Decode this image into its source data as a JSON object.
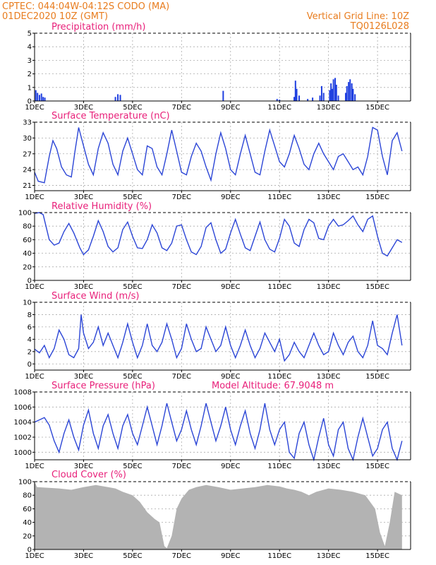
{
  "header": {
    "left_line1": "CPTEC:   044:04W-04:12S   CODO (MA)",
    "left_line2": "01DEC2020  10Z (GMT)",
    "right_line1": "Vertical Grid Line: 10Z",
    "right_line2": "TQ0126L028"
  },
  "colors": {
    "header": "#e87c1e",
    "panel_title": "#e8207a",
    "line": "#2b45d6",
    "bars": "#1f3fe0",
    "cloud": "#b3b3b3",
    "grid": "#aaaaaa"
  },
  "x_ticks": [
    "1DEC",
    "3DEC",
    "5DEC",
    "7DEC",
    "9DEC",
    "11DEC",
    "13DEC",
    "15DEC"
  ],
  "chart_data": [
    {
      "type": "bar",
      "title": "Precipitation (mm/h)",
      "ylim": [
        0,
        5
      ],
      "yticks": [
        "0",
        "1",
        "2",
        "3",
        "4",
        "5"
      ],
      "x_unit": "days since 1DEC 10Z",
      "points": [
        [
          0.05,
          0.8
        ],
        [
          0.12,
          0.6
        ],
        [
          0.2,
          0.45
        ],
        [
          0.28,
          0.55
        ],
        [
          0.35,
          0.3
        ],
        [
          0.42,
          0.25
        ],
        [
          3.3,
          0.3
        ],
        [
          3.4,
          0.5
        ],
        [
          3.5,
          0.45
        ],
        [
          7.7,
          0.75
        ],
        [
          9.9,
          0.15
        ],
        [
          10.0,
          0.1
        ],
        [
          10.6,
          0.3
        ],
        [
          10.65,
          1.5
        ],
        [
          10.7,
          0.9
        ],
        [
          10.8,
          0.4
        ],
        [
          11.15,
          0.15
        ],
        [
          11.35,
          0.25
        ],
        [
          11.65,
          0.4
        ],
        [
          11.72,
          1.1
        ],
        [
          11.8,
          0.6
        ],
        [
          12.05,
          0.8
        ],
        [
          12.1,
          1.3
        ],
        [
          12.15,
          0.9
        ],
        [
          12.2,
          1.6
        ],
        [
          12.27,
          1.7
        ],
        [
          12.32,
          1.2
        ],
        [
          12.4,
          0.4
        ],
        [
          12.7,
          0.6
        ],
        [
          12.75,
          1.1
        ],
        [
          12.82,
          1.4
        ],
        [
          12.88,
          1.6
        ],
        [
          12.95,
          1.3
        ],
        [
          13.0,
          0.9
        ],
        [
          13.08,
          0.5
        ]
      ]
    },
    {
      "type": "line",
      "title": "Surface Temperature (nC)",
      "ylim": [
        20,
        33
      ],
      "yticks": [
        "21",
        "24",
        "27",
        "30",
        "33"
      ],
      "x_unit": "days since 1DEC 10Z",
      "x": [
        0,
        0.15,
        0.4,
        0.6,
        0.75,
        0.9,
        1.1,
        1.3,
        1.5,
        1.65,
        1.8,
        2.0,
        2.2,
        2.4,
        2.6,
        2.8,
        3.0,
        3.2,
        3.4,
        3.6,
        3.8,
        4.0,
        4.2,
        4.4,
        4.6,
        4.8,
        5.0,
        5.2,
        5.4,
        5.6,
        5.8,
        6.0,
        6.2,
        6.4,
        6.6,
        6.8,
        7.0,
        7.2,
        7.4,
        7.6,
        7.8,
        8.0,
        8.2,
        8.4,
        8.6,
        8.8,
        9.0,
        9.2,
        9.4,
        9.6,
        9.8,
        10.0,
        10.2,
        10.4,
        10.6,
        10.8,
        11.0,
        11.2,
        11.4,
        11.6,
        11.8,
        12.0,
        12.2,
        12.4,
        12.6,
        12.8,
        13.0,
        13.2,
        13.4,
        13.6,
        13.8,
        14.0,
        14.2,
        14.4,
        14.6,
        14.8,
        15.0
      ],
      "y": [
        23.5,
        21.8,
        21.5,
        26.5,
        29.5,
        28.0,
        24.5,
        23.0,
        22.6,
        27.5,
        32.0,
        28.5,
        25.0,
        23.0,
        28.0,
        31.0,
        29.0,
        25.0,
        23.0,
        27.5,
        30.0,
        27.0,
        24.0,
        23.0,
        28.5,
        28.0,
        24.5,
        23.0,
        27.0,
        31.5,
        27.5,
        23.5,
        23.0,
        26.5,
        29.0,
        27.5,
        24.5,
        22.0,
        27.0,
        31.0,
        28.0,
        24.0,
        23.0,
        27.0,
        30.5,
        27.0,
        23.5,
        23.0,
        27.5,
        31.5,
        28.5,
        25.5,
        24.5,
        27.0,
        30.5,
        28.0,
        25.0,
        24.0,
        27.0,
        29.0,
        27.0,
        25.5,
        24.0,
        26.5,
        27.0,
        25.5,
        24.0,
        24.5,
        23.0,
        26.5,
        32.0,
        31.5,
        26.5,
        23.0,
        29.5,
        31.0,
        27.5
      ]
    },
    {
      "type": "line",
      "title": "Relative Humidity (%)",
      "ylim": [
        0,
        100
      ],
      "yticks": [
        "0",
        "20",
        "40",
        "60",
        "80",
        "100"
      ],
      "x_unit": "days since 1DEC 10Z",
      "x": [
        0,
        0.2,
        0.35,
        0.6,
        0.8,
        1.0,
        1.2,
        1.4,
        1.6,
        1.85,
        2.0,
        2.2,
        2.4,
        2.6,
        2.8,
        3.0,
        3.2,
        3.4,
        3.6,
        3.8,
        4.0,
        4.2,
        4.4,
        4.6,
        4.8,
        5.0,
        5.2,
        5.4,
        5.6,
        5.8,
        6.0,
        6.2,
        6.4,
        6.6,
        6.8,
        7.0,
        7.2,
        7.4,
        7.6,
        7.8,
        8.0,
        8.2,
        8.4,
        8.6,
        8.8,
        9.0,
        9.2,
        9.4,
        9.6,
        9.8,
        10.0,
        10.2,
        10.4,
        10.6,
        10.8,
        11.0,
        11.2,
        11.4,
        11.6,
        11.8,
        12.0,
        12.2,
        12.4,
        12.6,
        12.8,
        13.0,
        13.2,
        13.4,
        13.6,
        13.8,
        14.0,
        14.2,
        14.4,
        14.6,
        14.8,
        15.0
      ],
      "y": [
        99,
        100,
        97,
        60,
        52,
        55,
        72,
        84,
        70,
        48,
        38,
        45,
        65,
        88,
        72,
        50,
        42,
        48,
        75,
        86,
        65,
        48,
        47,
        60,
        82,
        70,
        48,
        44,
        55,
        80,
        82,
        60,
        42,
        38,
        50,
        78,
        85,
        60,
        40,
        46,
        70,
        90,
        68,
        48,
        44,
        65,
        86,
        60,
        46,
        42,
        62,
        90,
        80,
        55,
        50,
        75,
        90,
        85,
        62,
        60,
        80,
        90,
        80,
        82,
        88,
        95,
        82,
        72,
        90,
        95,
        65,
        40,
        36,
        48,
        60,
        56
      ]
    },
    {
      "type": "line",
      "title": "Surface Wind (m/s)",
      "ylim": [
        -1,
        10
      ],
      "yticks": [
        "0",
        "2",
        "4",
        "6",
        "8",
        "10"
      ],
      "x_unit": "days since 1DEC 10Z",
      "x": [
        0,
        0.2,
        0.4,
        0.6,
        0.8,
        1.0,
        1.2,
        1.4,
        1.6,
        1.8,
        1.9,
        2.0,
        2.2,
        2.4,
        2.6,
        2.8,
        3.0,
        3.2,
        3.4,
        3.6,
        3.8,
        4.0,
        4.2,
        4.4,
        4.6,
        4.8,
        5.0,
        5.2,
        5.4,
        5.6,
        5.8,
        6.0,
        6.2,
        6.4,
        6.6,
        6.8,
        7.0,
        7.2,
        7.4,
        7.6,
        7.8,
        8.0,
        8.2,
        8.4,
        8.6,
        8.8,
        9.0,
        9.2,
        9.4,
        9.6,
        9.8,
        10.0,
        10.2,
        10.4,
        10.6,
        10.8,
        11.0,
        11.2,
        11.4,
        11.6,
        11.8,
        12.0,
        12.2,
        12.4,
        12.6,
        12.8,
        13.0,
        13.2,
        13.4,
        13.6,
        13.8,
        14.0,
        14.2,
        14.4,
        14.6,
        14.8,
        15.0
      ],
      "y": [
        2.4,
        1.8,
        3.0,
        1.0,
        2.5,
        5.5,
        4.0,
        1.5,
        1.0,
        2.5,
        8.0,
        5.0,
        2.5,
        3.5,
        6.0,
        3.0,
        5.0,
        3.0,
        1.0,
        3.5,
        6.5,
        3.5,
        1.0,
        3.0,
        6.5,
        3.0,
        2.0,
        3.5,
        6.5,
        4.0,
        1.0,
        2.5,
        6.5,
        4.0,
        2.0,
        2.5,
        6.0,
        4.0,
        2.0,
        3.0,
        6.0,
        3.0,
        1.0,
        3.0,
        5.5,
        3.0,
        1.0,
        2.5,
        5.0,
        3.5,
        2.0,
        4.0,
        0.5,
        1.5,
        3.5,
        2.0,
        1.0,
        3.0,
        5.0,
        3.0,
        1.5,
        2.0,
        5.0,
        3.0,
        1.5,
        3.5,
        4.5,
        2.0,
        1.0,
        3.0,
        7.0,
        3.0,
        2.5,
        1.5,
        5.0,
        8.0,
        3.0
      ]
    },
    {
      "type": "line",
      "title": "Surface Pressure (hPa)",
      "subtitle": "Model Altitude: 67.9048  m",
      "ylim": [
        999,
        1008
      ],
      "yticks": [
        "1000",
        "1002",
        "1004",
        "1006",
        "1008"
      ],
      "x_unit": "days since 1DEC 10Z",
      "x": [
        0,
        0.2,
        0.4,
        0.6,
        0.8,
        1.0,
        1.2,
        1.4,
        1.6,
        1.8,
        2.0,
        2.2,
        2.4,
        2.6,
        2.8,
        3.0,
        3.2,
        3.4,
        3.6,
        3.8,
        4.0,
        4.2,
        4.4,
        4.6,
        4.8,
        5.0,
        5.2,
        5.4,
        5.6,
        5.8,
        6.0,
        6.2,
        6.4,
        6.6,
        6.8,
        7.0,
        7.2,
        7.4,
        7.6,
        7.8,
        8.0,
        8.2,
        8.4,
        8.6,
        8.8,
        9.0,
        9.2,
        9.4,
        9.6,
        9.8,
        10.0,
        10.2,
        10.4,
        10.6,
        10.8,
        11.0,
        11.2,
        11.4,
        11.6,
        11.8,
        12.0,
        12.2,
        12.4,
        12.6,
        12.8,
        13.0,
        13.2,
        13.4,
        13.6,
        13.8,
        14.0,
        14.2,
        14.4,
        14.6,
        14.8,
        15.0
      ],
      "y": [
        1004.0,
        1004.3,
        1004.6,
        1003.6,
        1001.5,
        1000.0,
        1002.5,
        1004.3,
        1002.0,
        1000.3,
        1003.6,
        1005.6,
        1002.5,
        1000.5,
        1003.5,
        1005.0,
        1002.5,
        1000.5,
        1003.5,
        1005.0,
        1002.5,
        1001.0,
        1003.5,
        1006.0,
        1003.5,
        1001.0,
        1003.5,
        1006.5,
        1004.0,
        1001.5,
        1003.0,
        1005.5,
        1003.0,
        1001.0,
        1003.5,
        1006.5,
        1004.0,
        1001.5,
        1003.5,
        1006.0,
        1003.0,
        1001.0,
        1003.5,
        1005.5,
        1002.5,
        1000.5,
        1003.0,
        1006.5,
        1003.0,
        1001.0,
        1003.0,
        1004.0,
        1000.0,
        999.2,
        1002.5,
        1004.0,
        1001.0,
        999.0,
        1002.0,
        1004.5,
        1001.0,
        999.5,
        1003.0,
        1004.0,
        1000.5,
        999.0,
        1002.0,
        1004.5,
        1002.0,
        999.5,
        1000.5,
        1003.0,
        1004.0,
        1000.5,
        999.0,
        1001.5
      ]
    },
    {
      "type": "area",
      "title": "Cloud Cover (%)",
      "ylim": [
        0,
        100
      ],
      "yticks": [
        "0",
        "20",
        "40",
        "60",
        "80",
        "100"
      ],
      "x_unit": "days since 1DEC 10Z",
      "x": [
        0,
        0.1,
        1.0,
        1.5,
        2.0,
        2.5,
        3.0,
        3.3,
        3.6,
        4.0,
        4.3,
        4.6,
        4.9,
        5.1,
        5.3,
        5.4,
        5.6,
        5.8,
        6.0,
        6.3,
        6.6,
        7.0,
        7.5,
        8.0,
        8.5,
        9.0,
        9.5,
        10.0,
        10.3,
        10.6,
        10.9,
        11.2,
        11.5,
        12.0,
        12.5,
        13.0,
        13.5,
        13.9,
        14.1,
        14.3,
        14.5,
        14.7,
        15.0
      ],
      "y": [
        100,
        92,
        90,
        88,
        92,
        95,
        92,
        90,
        85,
        80,
        70,
        55,
        45,
        40,
        5,
        2,
        20,
        60,
        75,
        88,
        92,
        95,
        92,
        88,
        90,
        92,
        95,
        93,
        90,
        88,
        85,
        80,
        85,
        90,
        88,
        85,
        80,
        60,
        25,
        5,
        40,
        85,
        80
      ]
    }
  ]
}
